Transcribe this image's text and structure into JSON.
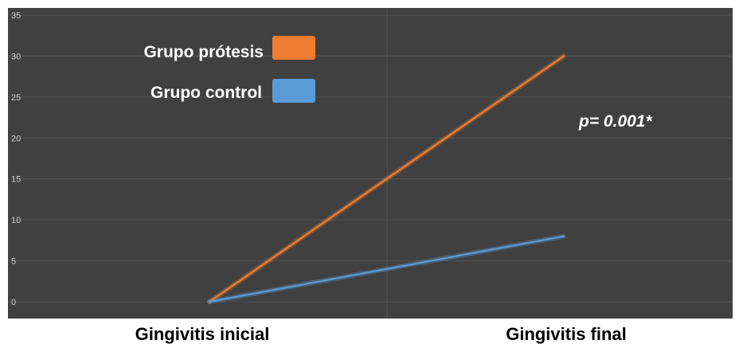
{
  "chart_data": {
    "type": "line",
    "categories": [
      "Gingivitis inicial",
      "Gingivitis final"
    ],
    "series": [
      {
        "name": "Grupo prótesis",
        "values": [
          0,
          30
        ],
        "color": "#ed7d31"
      },
      {
        "name": "Grupo control",
        "values": [
          0,
          8
        ],
        "color": "#5b9bd5"
      }
    ],
    "yticks": [
      0,
      5,
      10,
      15,
      20,
      25,
      30,
      35
    ],
    "ylim": [
      0,
      35
    ],
    "grid": true,
    "legend": "top-left",
    "annotation": "p= 0.001*",
    "background": "#404040"
  }
}
